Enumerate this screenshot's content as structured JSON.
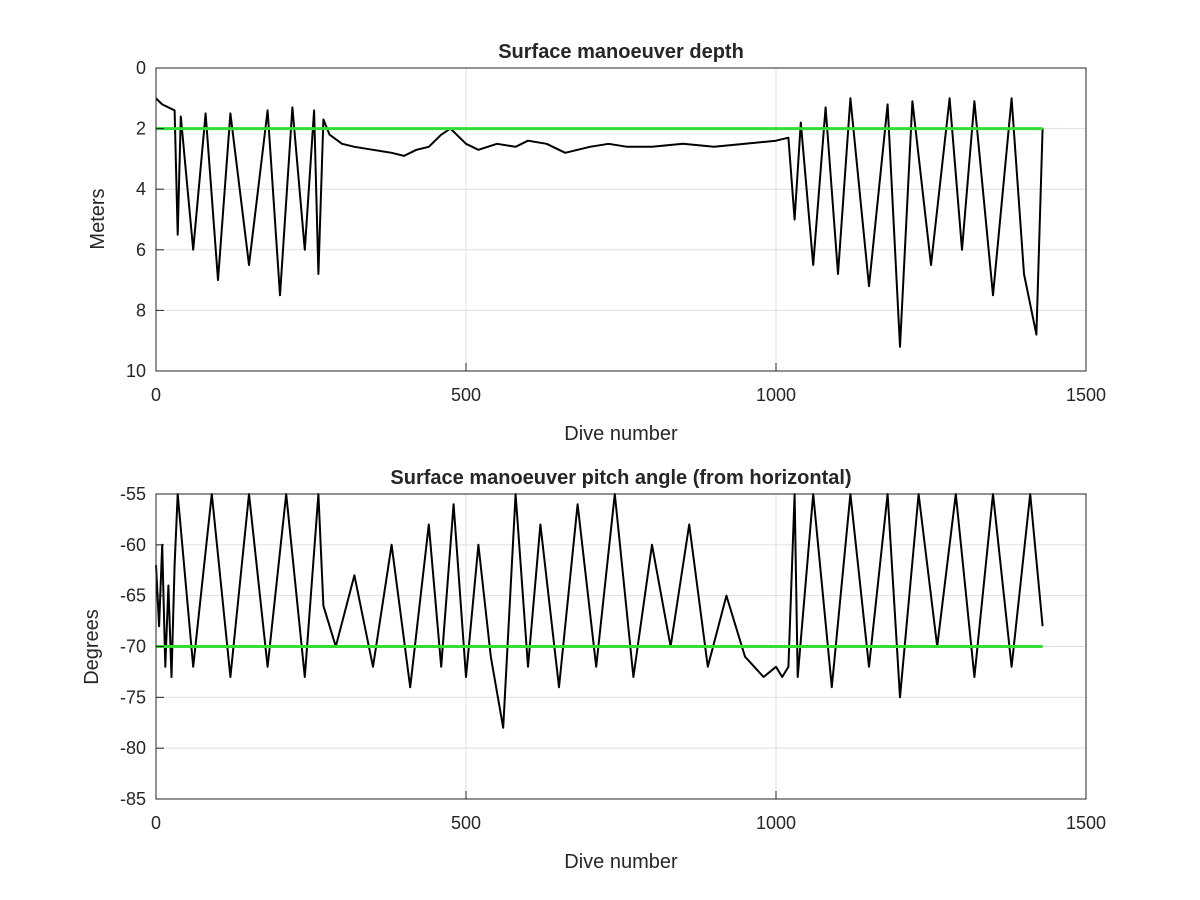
{
  "chart_data": [
    {
      "type": "line",
      "title": "Surface manoeuver depth",
      "xlabel": "Dive number",
      "ylabel": "Meters",
      "xlim": [
        0,
        1500
      ],
      "ylim": [
        0,
        10
      ],
      "y_reversed": true,
      "grid": true,
      "x_ticks": [
        "0",
        "500",
        "1000",
        "1500"
      ],
      "y_ticks": [
        "0",
        "2",
        "4",
        "6",
        "8",
        "10"
      ],
      "reference_line": {
        "y": 2,
        "x_range": [
          0,
          1430
        ],
        "color": "#33dd33"
      },
      "series": [
        {
          "color": "#000000",
          "x": [
            0,
            10,
            20,
            30,
            35,
            40,
            60,
            80,
            100,
            120,
            150,
            180,
            200,
            220,
            240,
            255,
            262,
            270,
            280,
            300,
            320,
            350,
            380,
            400,
            420,
            440,
            460,
            475,
            500,
            520,
            550,
            580,
            600,
            630,
            660,
            700,
            730,
            760,
            800,
            850,
            900,
            950,
            1000,
            1020,
            1030,
            1040,
            1060,
            1080,
            1100,
            1120,
            1150,
            1180,
            1200,
            1220,
            1250,
            1280,
            1300,
            1320,
            1350,
            1380,
            1400,
            1420,
            1430
          ],
          "y": [
            1.0,
            1.2,
            1.3,
            1.4,
            5.5,
            1.6,
            6.0,
            1.5,
            7.0,
            1.5,
            6.5,
            1.4,
            7.5,
            1.3,
            6.0,
            1.4,
            6.8,
            1.7,
            2.2,
            2.5,
            2.6,
            2.7,
            2.8,
            2.9,
            2.7,
            2.6,
            2.2,
            2.0,
            2.5,
            2.7,
            2.5,
            2.6,
            2.4,
            2.5,
            2.8,
            2.6,
            2.5,
            2.6,
            2.6,
            2.5,
            2.6,
            2.5,
            2.4,
            2.3,
            5.0,
            1.8,
            6.5,
            1.3,
            6.8,
            1.0,
            7.2,
            1.2,
            9.2,
            1.1,
            6.5,
            1.0,
            6.0,
            1.1,
            7.5,
            1.0,
            6.8,
            8.8,
            2.0
          ]
        }
      ]
    },
    {
      "type": "line",
      "title": "Surface manoeuver pitch angle (from horizontal)",
      "xlabel": "Dive number",
      "ylabel": "Degrees",
      "xlim": [
        0,
        1500
      ],
      "ylim": [
        -85,
        -55
      ],
      "grid": true,
      "x_ticks": [
        "0",
        "500",
        "1000",
        "1500"
      ],
      "y_ticks": [
        "-55",
        "-60",
        "-65",
        "-70",
        "-75",
        "-80",
        "-85"
      ],
      "reference_line": {
        "y": -70,
        "x_range": [
          0,
          1430
        ],
        "color": "#33dd33"
      },
      "series": [
        {
          "color": "#000000",
          "x": [
            0,
            5,
            10,
            15,
            20,
            25,
            30,
            35,
            60,
            90,
            120,
            150,
            180,
            210,
            240,
            262,
            270,
            290,
            320,
            350,
            380,
            410,
            440,
            460,
            480,
            500,
            520,
            540,
            560,
            580,
            600,
            620,
            650,
            680,
            710,
            740,
            770,
            800,
            830,
            860,
            890,
            920,
            950,
            980,
            1000,
            1010,
            1020,
            1030,
            1035,
            1060,
            1090,
            1120,
            1150,
            1180,
            1200,
            1230,
            1260,
            1290,
            1320,
            1350,
            1380,
            1410,
            1430
          ],
          "y": [
            -62,
            -68,
            -60,
            -72,
            -64,
            -73,
            -62,
            -55,
            -72,
            -55,
            -73,
            -55,
            -72,
            -55,
            -73,
            -55,
            -66,
            -70,
            -63,
            -72,
            -60,
            -74,
            -58,
            -72,
            -56,
            -73,
            -60,
            -71,
            -78,
            -55,
            -72,
            -58,
            -74,
            -56,
            -72,
            -55,
            -73,
            -60,
            -70,
            -58,
            -72,
            -65,
            -71,
            -73,
            -72,
            -73,
            -72,
            -55,
            -73,
            -55,
            -74,
            -55,
            -72,
            -55,
            -75,
            -55,
            -70,
            -55,
            -73,
            -55,
            -72,
            -55,
            -68
          ]
        }
      ]
    }
  ]
}
